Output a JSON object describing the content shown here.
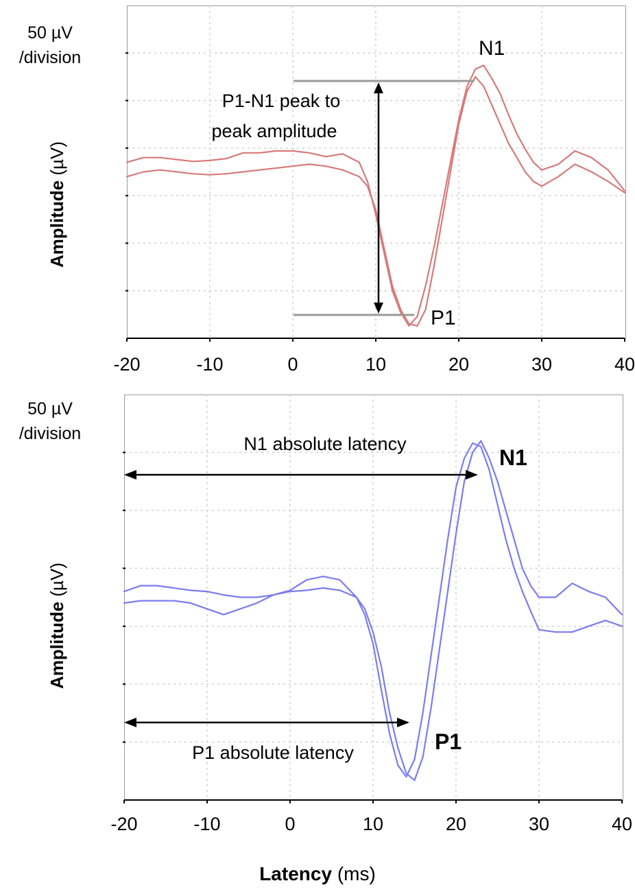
{
  "chart_data": [
    {
      "type": "line",
      "scale_label": [
        "50 µV",
        "/division"
      ],
      "ylabel_bold": "Amplitude",
      "ylabel_unit": "(µV)",
      "xticks": [
        "-20",
        "-10",
        "0",
        "10",
        "20",
        "30",
        "40"
      ],
      "xlim": [
        -20,
        40
      ],
      "ylim": [
        -175,
        175
      ],
      "grid": true,
      "peak_labels": {
        "n1": "N1",
        "p1": "P1"
      },
      "annotation": [
        "P1-N1 peak to",
        "peak amplitude"
      ],
      "color": "#d77a7a",
      "series": [
        {
          "x": [
            -20,
            -18,
            -16,
            -14,
            -12,
            -10,
            -8,
            -6,
            -4,
            -2,
            0,
            2,
            4,
            6,
            8,
            9,
            10,
            11,
            12,
            13,
            14,
            15,
            16,
            17,
            18,
            19,
            20,
            21,
            22,
            23,
            24,
            25,
            26,
            27,
            28,
            29,
            30,
            32,
            34,
            36,
            38,
            40
          ],
          "y": [
            10,
            15,
            15,
            13,
            11,
            12,
            14,
            20,
            20,
            22,
            22,
            20,
            16,
            19,
            10,
            -10,
            -45,
            -85,
            -125,
            -148,
            -162,
            -152,
            -120,
            -80,
            -35,
            10,
            55,
            90,
            108,
            112,
            98,
            82,
            60,
            40,
            24,
            10,
            2,
            8,
            22,
            15,
            2,
            -20
          ]
        },
        {
          "x": [
            -20,
            -18,
            -16,
            -14,
            -12,
            -10,
            -8,
            -6,
            -4,
            -2,
            0,
            2,
            4,
            6,
            8,
            9,
            10,
            11,
            12,
            13,
            14,
            15,
            16,
            17,
            18,
            19,
            20,
            21,
            22,
            23,
            24,
            25,
            26,
            27,
            28,
            29,
            30,
            32,
            34,
            36,
            38,
            40
          ],
          "y": [
            -5,
            0,
            2,
            0,
            -2,
            -3,
            -2,
            0,
            2,
            4,
            6,
            8,
            6,
            2,
            -5,
            -15,
            -40,
            -80,
            -120,
            -145,
            -160,
            -162,
            -145,
            -100,
            -50,
            0,
            50,
            85,
            100,
            90,
            70,
            50,
            30,
            15,
            0,
            -10,
            -15,
            -5,
            8,
            0,
            -10,
            -22
          ]
        }
      ]
    },
    {
      "type": "line",
      "scale_label": [
        "50 µV",
        "/division"
      ],
      "ylabel_bold": "Amplitude",
      "ylabel_unit": "(µV)",
      "xticks": [
        "-20",
        "-10",
        "0",
        "10",
        "20",
        "30",
        "40"
      ],
      "xlim": [
        -20,
        40
      ],
      "ylim": [
        -175,
        175
      ],
      "grid": true,
      "peak_labels": {
        "n1": "N1",
        "p1": "P1"
      },
      "annotation_n1": "N1 absolute latency",
      "annotation_p1": "P1 absolute latency",
      "color": "#7b7bf2",
      "series": [
        {
          "x": [
            -20,
            -18,
            -16,
            -14,
            -12,
            -10,
            -8,
            -6,
            -4,
            -2,
            0,
            2,
            4,
            6,
            8,
            9,
            10,
            11,
            12,
            13,
            14,
            15,
            16,
            17,
            18,
            19,
            20,
            21,
            22,
            23,
            24,
            25,
            26,
            27,
            28,
            29,
            30,
            32,
            34,
            36,
            38,
            40
          ],
          "y": [
            -5,
            -3,
            -3,
            -3,
            -5,
            -10,
            -15,
            -10,
            -5,
            2,
            6,
            15,
            18,
            15,
            0,
            -15,
            -40,
            -80,
            -118,
            -145,
            -155,
            -140,
            -100,
            -50,
            0,
            50,
            95,
            120,
            133,
            130,
            110,
            80,
            50,
            25,
            5,
            -12,
            -28,
            -30,
            -30,
            -25,
            -20,
            -25
          ]
        },
        {
          "x": [
            -20,
            -18,
            -16,
            -14,
            -12,
            -10,
            -8,
            -6,
            -4,
            -2,
            0,
            2,
            4,
            6,
            8,
            9,
            10,
            11,
            12,
            13,
            14,
            15,
            16,
            17,
            18,
            19,
            20,
            21,
            22,
            23,
            24,
            25,
            26,
            27,
            28,
            29,
            30,
            32,
            34,
            36,
            38,
            40
          ],
          "y": [
            5,
            10,
            10,
            8,
            6,
            5,
            2,
            0,
            0,
            2,
            5,
            6,
            8,
            6,
            0,
            -10,
            -30,
            -60,
            -100,
            -130,
            -152,
            -158,
            -138,
            -95,
            -45,
            5,
            55,
            100,
            125,
            135,
            120,
            100,
            75,
            50,
            25,
            10,
            0,
            0,
            12,
            5,
            0,
            -15
          ]
        }
      ]
    }
  ],
  "xlabel_bold": "Latency",
  "xlabel_unit": "(ms)"
}
